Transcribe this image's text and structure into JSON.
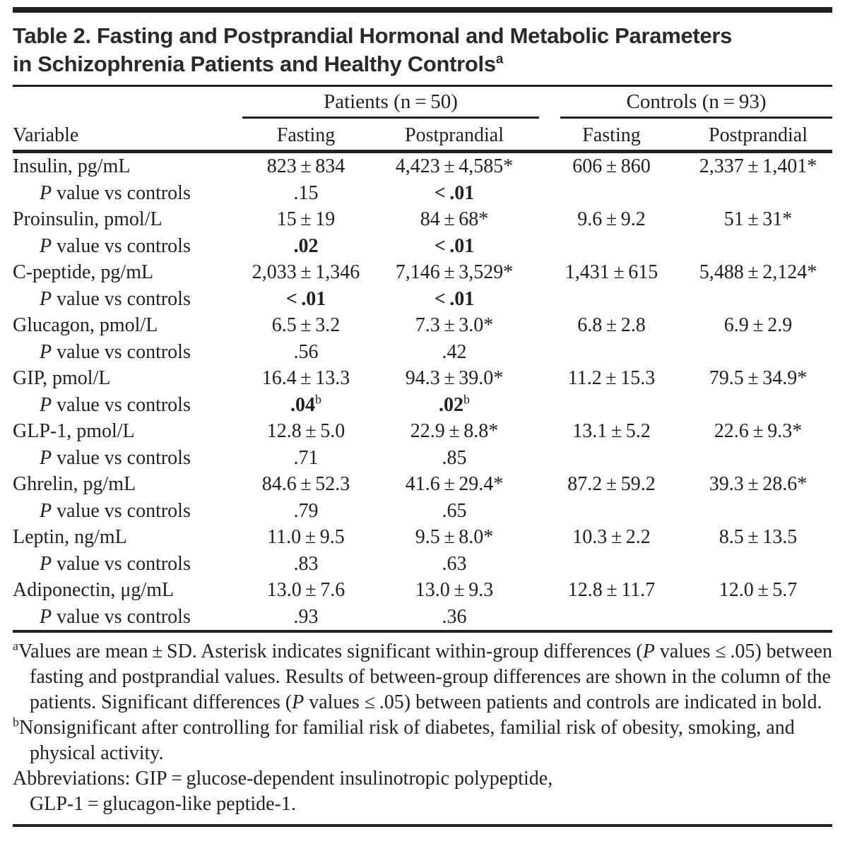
{
  "colors": {
    "text": "#231f20",
    "title_text": "#2b2a29",
    "rule": "#231f20",
    "background": "#ffffff"
  },
  "title": {
    "line1": "Table 2. Fasting and Postprandial Hormonal and Metabolic Parameters",
    "line2": "in Schizophrenia Patients and Healthy Controls",
    "superscript": "a"
  },
  "table": {
    "group_headers": [
      {
        "label": "Patients (n = 50)"
      },
      {
        "label": "Controls (n = 93)"
      }
    ],
    "column_headers": [
      "Variable",
      "Fasting",
      "Postprandial",
      "Fasting",
      "Postprandial"
    ],
    "rows": [
      {
        "variable": {
          "italic_prefix": "",
          "text": "Insulin, pg/mL",
          "indent": false
        },
        "cells": [
          {
            "text": "823 ± 834"
          },
          {
            "text": "4,423 ± 4,585*"
          },
          {
            "text": "606 ± 860"
          },
          {
            "text": "2,337 ± 1,401*"
          }
        ]
      },
      {
        "variable": {
          "italic_prefix": "P",
          "text": " value vs controls",
          "indent": true
        },
        "cells": [
          {
            "text": ".15"
          },
          {
            "text": "< .01",
            "bold": true
          },
          {
            "text": ""
          },
          {
            "text": ""
          }
        ]
      },
      {
        "variable": {
          "italic_prefix": "",
          "text": "Proinsulin, pmol/L",
          "indent": false
        },
        "cells": [
          {
            "text": "15 ± 19"
          },
          {
            "text": "84 ± 68*"
          },
          {
            "text": "9.6 ± 9.2"
          },
          {
            "text": "51 ± 31*"
          }
        ]
      },
      {
        "variable": {
          "italic_prefix": "P",
          "text": " value vs controls",
          "indent": true
        },
        "cells": [
          {
            "text": ".02",
            "bold": true
          },
          {
            "text": "< .01",
            "bold": true
          },
          {
            "text": ""
          },
          {
            "text": ""
          }
        ]
      },
      {
        "variable": {
          "italic_prefix": "",
          "text": "C-peptide, pg/mL",
          "indent": false
        },
        "cells": [
          {
            "text": "2,033 ± 1,346"
          },
          {
            "text": "7,146 ± 3,529*"
          },
          {
            "text": "1,431 ± 615"
          },
          {
            "text": "5,488 ± 2,124*"
          }
        ]
      },
      {
        "variable": {
          "italic_prefix": "P",
          "text": " value vs controls",
          "indent": true
        },
        "cells": [
          {
            "text": "< .01",
            "bold": true
          },
          {
            "text": "< .01",
            "bold": true
          },
          {
            "text": ""
          },
          {
            "text": ""
          }
        ]
      },
      {
        "variable": {
          "italic_prefix": "",
          "text": "Glucagon, pmol/L",
          "indent": false
        },
        "cells": [
          {
            "text": "6.5 ± 3.2"
          },
          {
            "text": "7.3 ± 3.0*"
          },
          {
            "text": "6.8 ± 2.8"
          },
          {
            "text": "6.9 ± 2.9"
          }
        ]
      },
      {
        "variable": {
          "italic_prefix": "P",
          "text": " value vs controls",
          "indent": true
        },
        "cells": [
          {
            "text": ".56"
          },
          {
            "text": ".42"
          },
          {
            "text": ""
          },
          {
            "text": ""
          }
        ]
      },
      {
        "variable": {
          "italic_prefix": "",
          "text": "GIP, pmol/L",
          "indent": false
        },
        "cells": [
          {
            "text": "16.4 ± 13.3"
          },
          {
            "text": "94.3 ± 39.0*"
          },
          {
            "text": "11.2 ± 15.3"
          },
          {
            "text": "79.5 ± 34.9*"
          }
        ]
      },
      {
        "variable": {
          "italic_prefix": "P",
          "text": " value vs controls",
          "indent": true
        },
        "cells": [
          {
            "text": ".04",
            "bold": true,
            "sup": "b"
          },
          {
            "text": ".02",
            "bold": true,
            "sup": "b"
          },
          {
            "text": ""
          },
          {
            "text": ""
          }
        ]
      },
      {
        "variable": {
          "italic_prefix": "",
          "text": "GLP-1, pmol/L",
          "indent": false
        },
        "cells": [
          {
            "text": "12.8 ± 5.0"
          },
          {
            "text": "22.9 ± 8.8*"
          },
          {
            "text": "13.1 ± 5.2"
          },
          {
            "text": "22.6 ± 9.3*"
          }
        ]
      },
      {
        "variable": {
          "italic_prefix": "P",
          "text": " value vs controls",
          "indent": true
        },
        "cells": [
          {
            "text": ".71"
          },
          {
            "text": ".85"
          },
          {
            "text": ""
          },
          {
            "text": ""
          }
        ]
      },
      {
        "variable": {
          "italic_prefix": "",
          "text": "Ghrelin, pg/mL",
          "indent": false
        },
        "cells": [
          {
            "text": "84.6 ± 52.3"
          },
          {
            "text": "41.6 ± 29.4*"
          },
          {
            "text": "87.2 ± 59.2"
          },
          {
            "text": "39.3 ± 28.6*"
          }
        ]
      },
      {
        "variable": {
          "italic_prefix": "P",
          "text": " value vs controls",
          "indent": true
        },
        "cells": [
          {
            "text": ".79"
          },
          {
            "text": ".65"
          },
          {
            "text": ""
          },
          {
            "text": ""
          }
        ]
      },
      {
        "variable": {
          "italic_prefix": "",
          "text": "Leptin, ng/mL",
          "indent": false
        },
        "cells": [
          {
            "text": "11.0 ± 9.5"
          },
          {
            "text": "9.5 ± 8.0*"
          },
          {
            "text": "10.3 ± 2.2"
          },
          {
            "text": "8.5 ± 13.5"
          }
        ]
      },
      {
        "variable": {
          "italic_prefix": "P",
          "text": " value vs controls",
          "indent": true
        },
        "cells": [
          {
            "text": ".83"
          },
          {
            "text": ".63"
          },
          {
            "text": ""
          },
          {
            "text": ""
          }
        ]
      },
      {
        "variable": {
          "italic_prefix": "",
          "text": "Adiponectin, μg/mL",
          "indent": false
        },
        "cells": [
          {
            "text": "13.0 ± 7.6"
          },
          {
            "text": "13.0 ± 9.3"
          },
          {
            "text": "12.8 ± 11.7"
          },
          {
            "text": "12.0 ± 5.7"
          }
        ]
      },
      {
        "variable": {
          "italic_prefix": "P",
          "text": " value vs controls",
          "indent": true
        },
        "cells": [
          {
            "text": ".93"
          },
          {
            "text": ".36"
          },
          {
            "text": ""
          },
          {
            "text": ""
          }
        ]
      }
    ]
  },
  "footnotes": [
    {
      "marker": "a",
      "segments": [
        {
          "text": "Values are mean ± SD. Asterisk indicates significant within-group differences ("
        },
        {
          "text": "P",
          "italic": true
        },
        {
          "text": " values ≤ .05) between fasting and postprandial values. Results of between-group differences are shown in the column of the patients. Significant differences ("
        },
        {
          "text": "P",
          "italic": true
        },
        {
          "text": " values ≤ .05) between patients and controls are indicated in bold."
        }
      ]
    },
    {
      "marker": "b",
      "segments": [
        {
          "text": "Nonsignificant after controlling for familial risk of diabetes, familial risk of obesity, smoking, and physical activity."
        }
      ]
    },
    {
      "marker": "",
      "segments": [
        {
          "text": "Abbreviations: GIP = glucose-dependent insulinotropic polypeptide,"
        },
        {
          "break": true
        },
        {
          "text": "GLP-1 = glucagon-like peptide-1."
        }
      ]
    }
  ]
}
